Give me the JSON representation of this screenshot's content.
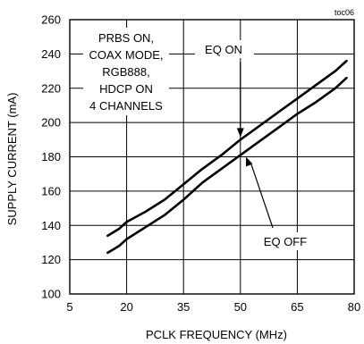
{
  "chart_data": {
    "type": "line",
    "corner_label": "toc06",
    "xlabel": "PCLK FREQUENCY (MHz)",
    "ylabel": "SUPPLY CURRENT (mA)",
    "xlim": [
      5,
      80
    ],
    "ylim": [
      100,
      260
    ],
    "x_ticks": [
      5,
      20,
      35,
      50,
      65,
      80
    ],
    "y_ticks": [
      100,
      120,
      140,
      160,
      180,
      200,
      220,
      240,
      260
    ],
    "grid": true,
    "conditions": [
      "PRBS ON,",
      "COAX MODE,",
      "RGB888,",
      "HDCP ON",
      "4 CHANNELS"
    ],
    "series": [
      {
        "name": "EQ ON",
        "x": [
          15,
          18,
          20,
          25,
          30,
          35,
          40,
          45,
          50,
          55,
          60,
          65,
          70,
          75,
          78
        ],
        "y": [
          134,
          138,
          142,
          148,
          155,
          164,
          173,
          181,
          190,
          198,
          206,
          214,
          222,
          230,
          236
        ]
      },
      {
        "name": "EQ OFF",
        "x": [
          15,
          18,
          20,
          25,
          30,
          35,
          40,
          45,
          50,
          55,
          60,
          65,
          70,
          75,
          78
        ],
        "y": [
          124,
          128,
          132,
          139,
          146,
          155,
          165,
          173,
          181,
          189,
          197,
          205,
          212,
          220,
          226
        ]
      }
    ]
  }
}
